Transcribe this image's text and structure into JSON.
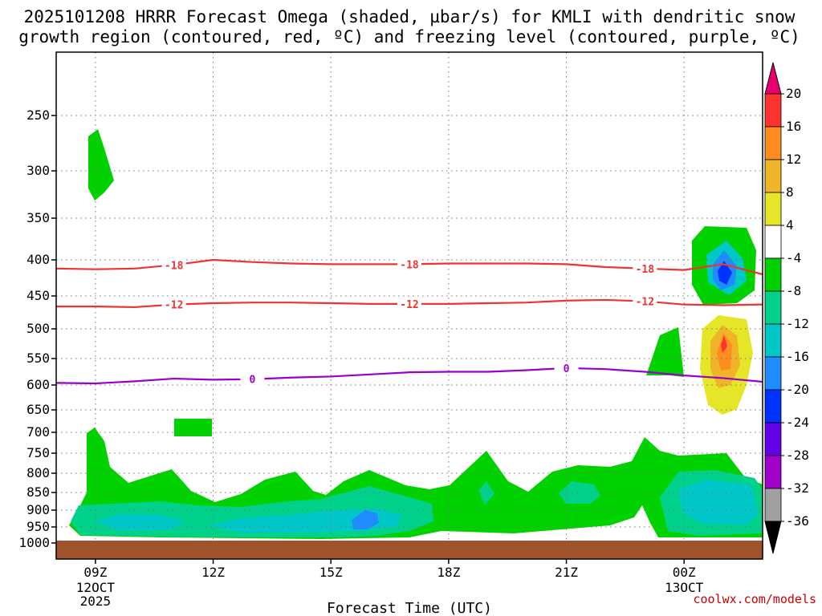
{
  "title_line1": "2025101208 HRRR Forecast Omega (shaded, µbar/s) for KMLI with dendritic snow",
  "title_line2": "growth region (contoured, red, ºC) and freezing level (contoured, purple, ºC)",
  "credit": "coolwx.com/models",
  "chart_data": {
    "type": "time-height cross section",
    "title": "2025101208 HRRR Forecast Omega (shaded, µbar/s) for KMLI with dendritic snow growth region (contoured, red, ºC) and freezing level (contoured, purple, ºC)",
    "xlabel": "Forecast Time (UTC)",
    "ylabel": "",
    "x_ticks": [
      {
        "label": "09Z",
        "sub": [
          "12OCT",
          "2025"
        ],
        "hour": 1
      },
      {
        "label": "12Z",
        "sub": [],
        "hour": 4
      },
      {
        "label": "15Z",
        "sub": [],
        "hour": 7
      },
      {
        "label": "18Z",
        "sub": [],
        "hour": 10
      },
      {
        "label": "21Z",
        "sub": [],
        "hour": 13
      },
      {
        "label": "00Z",
        "sub": [
          "13OCT"
        ],
        "hour": 16
      }
    ],
    "xlim_hours": [
      0,
      18
    ],
    "y_ticks": [
      250,
      300,
      350,
      400,
      450,
      500,
      550,
      600,
      650,
      700,
      750,
      800,
      850,
      900,
      950,
      1000
    ],
    "ylim_mb": [
      1000,
      200
    ],
    "grid": "dotted",
    "ground_color": "#a0522d",
    "colorbar": {
      "labels": [
        "20",
        "16",
        "12",
        "8",
        "4",
        "-4",
        "-8",
        "-12",
        "-16",
        "-20",
        "-24",
        "-28",
        "-32",
        "-36"
      ],
      "colors": [
        "#e8006e",
        "#ff3232",
        "#ff8c1e",
        "#f0b428",
        "#e6e628",
        "#ffffff",
        "#00d200",
        "#00d28c",
        "#00c8c8",
        "#1e8cff",
        "#0032ff",
        "#6400e6",
        "#a000c8",
        "#a0a0a0",
        "#000000"
      ]
    },
    "contours": [
      {
        "name": "-18",
        "color": "#ee3333",
        "labels": [
          "-18",
          "-18",
          "-18"
        ],
        "points": [
          [
            0,
            412
          ],
          [
            1,
            413
          ],
          [
            2,
            412
          ],
          [
            3,
            407
          ],
          [
            4,
            400
          ],
          [
            5,
            403
          ],
          [
            6,
            405
          ],
          [
            7,
            406
          ],
          [
            8,
            406
          ],
          [
            9,
            406
          ],
          [
            10,
            405
          ],
          [
            11,
            405
          ],
          [
            12,
            405
          ],
          [
            13,
            406
          ],
          [
            14,
            410
          ],
          [
            15,
            412
          ],
          [
            16,
            414
          ],
          [
            17,
            406
          ],
          [
            18,
            420
          ]
        ]
      },
      {
        "name": "-12",
        "color": "#ee3333",
        "labels": [
          "-12",
          "-12",
          "-12"
        ],
        "points": [
          [
            0,
            466
          ],
          [
            1,
            466
          ],
          [
            2,
            467
          ],
          [
            3,
            463
          ],
          [
            4,
            461
          ],
          [
            5,
            460
          ],
          [
            6,
            460
          ],
          [
            7,
            461
          ],
          [
            8,
            462
          ],
          [
            9,
            462
          ],
          [
            10,
            462
          ],
          [
            11,
            461
          ],
          [
            12,
            460
          ],
          [
            13,
            457
          ],
          [
            14,
            456
          ],
          [
            15,
            458
          ],
          [
            16,
            463
          ],
          [
            17,
            464
          ],
          [
            18,
            463
          ]
        ]
      },
      {
        "name": "0",
        "color": "#9900cc",
        "labels": [
          "0",
          "0"
        ],
        "points": [
          [
            0,
            596
          ],
          [
            1,
            597
          ],
          [
            2,
            593
          ],
          [
            3,
            588
          ],
          [
            4,
            590
          ],
          [
            5,
            589
          ],
          [
            6,
            586
          ],
          [
            7,
            584
          ],
          [
            8,
            580
          ],
          [
            9,
            576
          ],
          [
            10,
            575
          ],
          [
            11,
            575
          ],
          [
            12,
            572
          ],
          [
            13,
            568
          ],
          [
            14,
            570
          ],
          [
            15,
            575
          ],
          [
            16,
            582
          ],
          [
            17,
            587
          ],
          [
            18,
            594
          ]
        ]
      }
    ]
  }
}
